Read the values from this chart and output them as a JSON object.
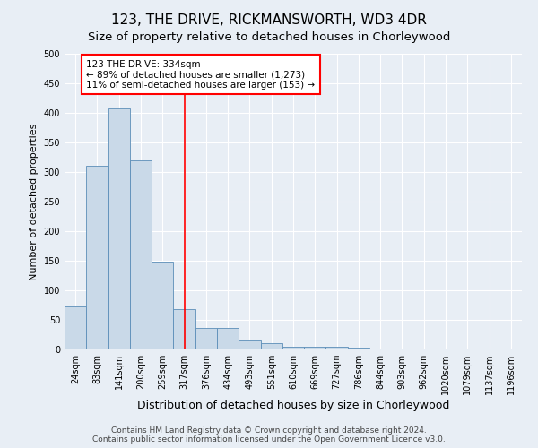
{
  "title": "123, THE DRIVE, RICKMANSWORTH, WD3 4DR",
  "subtitle": "Size of property relative to detached houses in Chorleywood",
  "xlabel": "Distribution of detached houses by size in Chorleywood",
  "ylabel": "Number of detached properties",
  "bin_labels": [
    "24sqm",
    "83sqm",
    "141sqm",
    "200sqm",
    "259sqm",
    "317sqm",
    "376sqm",
    "434sqm",
    "493sqm",
    "551sqm",
    "610sqm",
    "669sqm",
    "727sqm",
    "786sqm",
    "844sqm",
    "903sqm",
    "962sqm",
    "1020sqm",
    "1079sqm",
    "1137sqm",
    "1196sqm"
  ],
  "bar_values": [
    73,
    310,
    407,
    320,
    148,
    68,
    36,
    36,
    15,
    10,
    5,
    5,
    5,
    3,
    1,
    1,
    0,
    0,
    0,
    0,
    2
  ],
  "bar_color": "#c9d9e8",
  "bar_edge_color": "#5b8db8",
  "vline_x": 5.0,
  "annotation_text": "123 THE DRIVE: 334sqm\n← 89% of detached houses are smaller (1,273)\n11% of semi-detached houses are larger (153) →",
  "annotation_box_color": "white",
  "annotation_box_edge": "red",
  "vline_color": "red",
  "footer_line1": "Contains HM Land Registry data © Crown copyright and database right 2024.",
  "footer_line2": "Contains public sector information licensed under the Open Government Licence v3.0.",
  "background_color": "#e8eef5",
  "ylim": [
    0,
    500
  ],
  "title_fontsize": 11,
  "subtitle_fontsize": 9.5,
  "xlabel_fontsize": 9,
  "ylabel_fontsize": 8,
  "tick_fontsize": 7,
  "footer_fontsize": 6.5,
  "annotation_fontsize": 7.5
}
